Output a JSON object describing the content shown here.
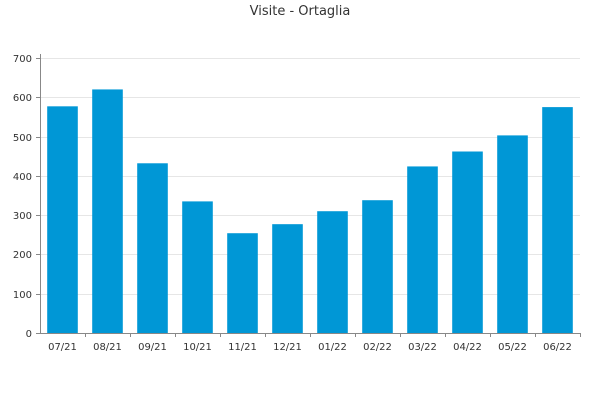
{
  "chart_data": {
    "type": "bar",
    "title": "Visite - Ortaglia",
    "xlabel": "",
    "ylabel": "",
    "categories": [
      "07/21",
      "08/21",
      "09/21",
      "10/21",
      "11/21",
      "12/21",
      "01/22",
      "02/22",
      "03/22",
      "04/22",
      "05/22",
      "06/22"
    ],
    "values": [
      577,
      620,
      432,
      335,
      254,
      277,
      310,
      338,
      424,
      462,
      503,
      575
    ],
    "ylim": [
      0,
      700
    ],
    "yticks": [
      0,
      100,
      200,
      300,
      400,
      500,
      600,
      700
    ],
    "grid": true,
    "legend": "none",
    "bar_color": "#0097d6"
  }
}
